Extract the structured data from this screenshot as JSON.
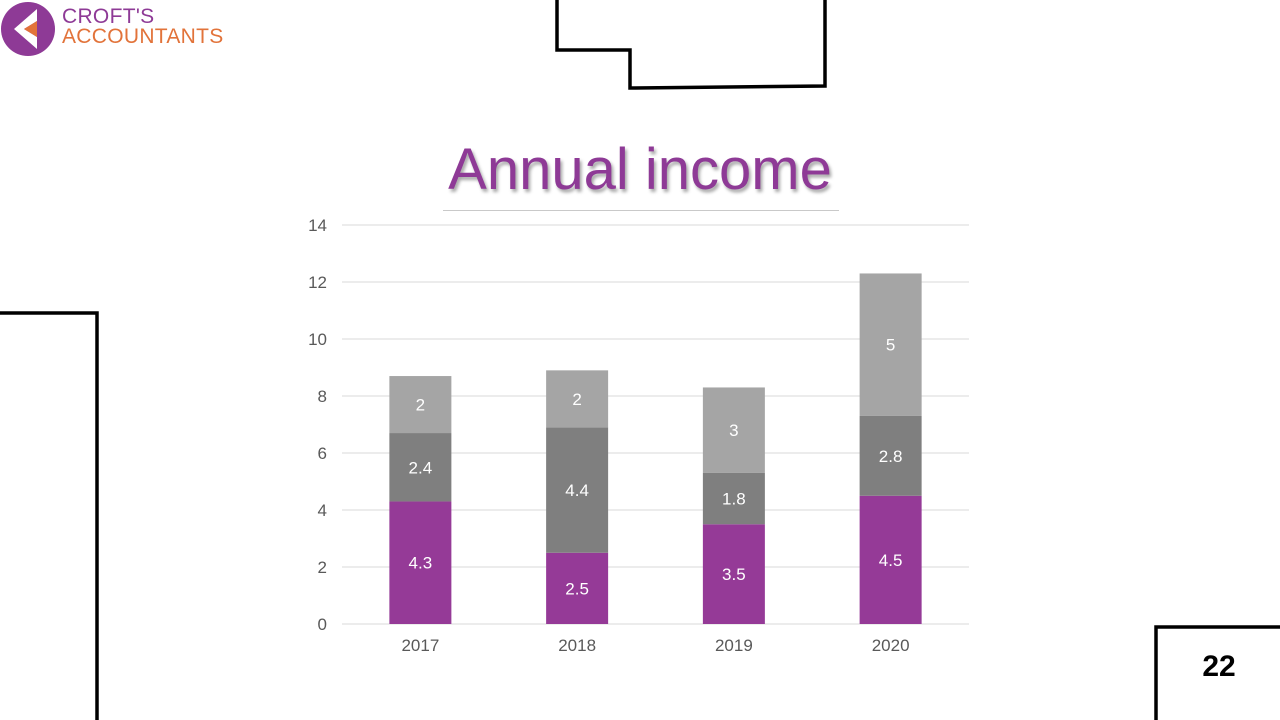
{
  "brand": {
    "line1": "CROFT'S",
    "line2": "ACCOUNTANTS",
    "colors": {
      "purple": "#8e3a96",
      "orange": "#e2733a"
    }
  },
  "slide": {
    "title": "Annual income",
    "page_number": "22"
  },
  "chart_data": {
    "type": "bar",
    "stacked": true,
    "categories": [
      "2017",
      "2018",
      "2019",
      "2020"
    ],
    "series": [
      {
        "values": [
          4.3,
          2.5,
          3.5,
          4.5
        ],
        "color": "#953a97"
      },
      {
        "values": [
          2.4,
          4.4,
          1.8,
          2.8
        ],
        "color": "#7f7f7f"
      },
      {
        "values": [
          2,
          2,
          3,
          5
        ],
        "color": "#a5a5a5"
      }
    ],
    "ylim": [
      0,
      14
    ],
    "yticks": [
      0,
      2,
      4,
      6,
      8,
      10,
      12,
      14
    ],
    "grid": true,
    "data_labels": true,
    "legend": "none"
  }
}
